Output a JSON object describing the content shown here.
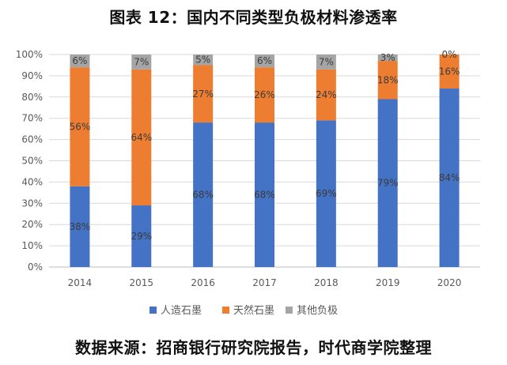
{
  "title": "图表 12：国内不同类型负极材料渗透率",
  "footer": "数据来源：招商银行研究院报告，时代商学院整理",
  "chart_data": {
    "type": "bar",
    "stacked": true,
    "stacked_percent": true,
    "categories": [
      "2014",
      "2015",
      "2016",
      "2017",
      "2018",
      "2019",
      "2020"
    ],
    "series": [
      {
        "name": "人造石墨",
        "color": "#4472C4",
        "values": [
          38,
          29,
          68,
          68,
          69,
          79,
          84
        ],
        "labels": [
          "38%",
          "29%",
          "68%",
          "68%",
          "69%",
          "79%",
          "84%"
        ]
      },
      {
        "name": "天然石墨",
        "color": "#ED7D31",
        "values": [
          56,
          64,
          27,
          26,
          24,
          18,
          16
        ],
        "labels": [
          "56%",
          "64%",
          "27%",
          "26%",
          "24%",
          "18%",
          "16%"
        ]
      },
      {
        "name": "其他负极",
        "color": "#A5A5A5",
        "values": [
          6,
          7,
          5,
          6,
          7,
          3,
          0
        ],
        "labels": [
          "6%",
          "7%",
          "5%",
          "6%",
          "7%",
          "3%",
          "0%"
        ]
      }
    ],
    "ylim": [
      0,
      100
    ],
    "yticks": [
      "0%",
      "10%",
      "20%",
      "30%",
      "40%",
      "50%",
      "60%",
      "70%",
      "80%",
      "90%",
      "100%"
    ],
    "grid": true,
    "legend_position": "bottom"
  }
}
